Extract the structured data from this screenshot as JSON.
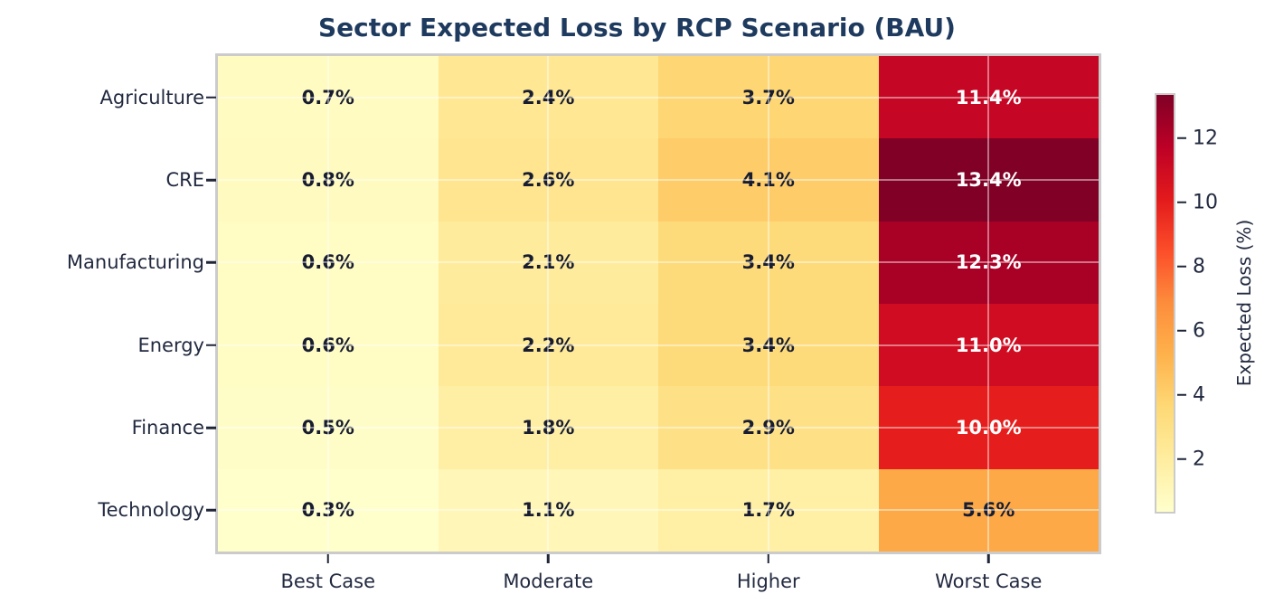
{
  "chart_data": {
    "type": "heatmap",
    "title": "Sector Expected Loss by RCP Scenario (BAU)",
    "rows": [
      "Agriculture",
      "CRE",
      "Manufacturing",
      "Energy",
      "Finance",
      "Technology"
    ],
    "columns": [
      "Best Case",
      "Moderate",
      "Higher",
      "Worst Case"
    ],
    "values": [
      [
        0.7,
        2.4,
        3.7,
        11.4
      ],
      [
        0.8,
        2.6,
        4.1,
        13.4
      ],
      [
        0.6,
        2.1,
        3.4,
        12.3
      ],
      [
        0.6,
        2.2,
        3.4,
        11.0
      ],
      [
        0.5,
        1.8,
        2.9,
        10.0
      ],
      [
        0.3,
        1.1,
        1.7,
        5.6
      ]
    ],
    "value_suffix": "%",
    "value_decimals": 1,
    "xlabel": "",
    "ylabel": "",
    "grid": "white lines at cell centers",
    "colorbar": {
      "label": "Expected Loss (%)",
      "ticks": [
        2,
        4,
        6,
        8,
        10,
        12
      ],
      "vmin": 0.3,
      "vmax": 13.4,
      "position": "right"
    },
    "colormap": {
      "name": "YlOrRd",
      "stops": [
        {
          "t": 0.0,
          "hex": "#ffffcc"
        },
        {
          "t": 0.125,
          "hex": "#ffeda0"
        },
        {
          "t": 0.25,
          "hex": "#fed976"
        },
        {
          "t": 0.375,
          "hex": "#feb24c"
        },
        {
          "t": 0.5,
          "hex": "#fd8d3c"
        },
        {
          "t": 0.625,
          "hex": "#fc4e2a"
        },
        {
          "t": 0.75,
          "hex": "#e31a1c"
        },
        {
          "t": 0.875,
          "hex": "#bd0026"
        },
        {
          "t": 1.0,
          "hex": "#800026"
        }
      ]
    },
    "colors": {
      "title": "#1e3a5e",
      "axis_label": "#222a40",
      "tick_mark": "#1f2638",
      "annotation_dark": "#171c30",
      "annotation_light": "#ffffff",
      "spine": "#cbcbcb",
      "background": "#ffffff"
    }
  }
}
